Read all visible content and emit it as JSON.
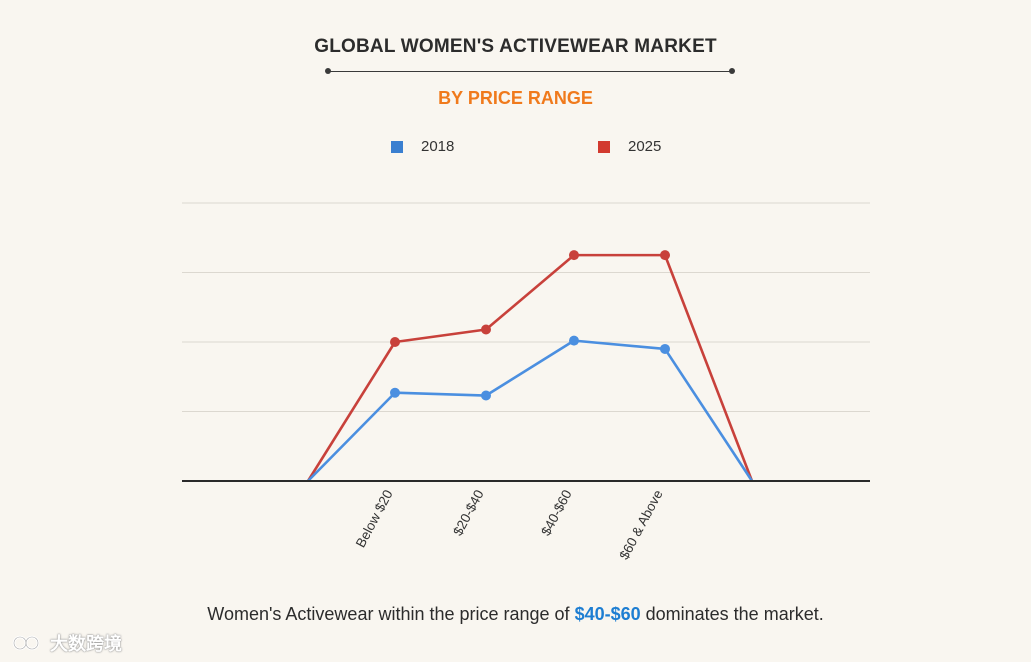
{
  "header": {
    "title": "GLOBAL WOMEN'S ACTIVEWEAR MARKET",
    "subtitle": "BY PRICE RANGE"
  },
  "legend": [
    {
      "label": "2018",
      "color": "#3a7fd0"
    },
    {
      "label": "2025",
      "color": "#d23a2f"
    }
  ],
  "caption": {
    "prefix": "Women's Activewear within the price range of ",
    "highlight": "$40-$60",
    "suffix": " dominates the market."
  },
  "watermark": {
    "text": "大数跨境"
  },
  "colors": {
    "series_2018": "#4b8fe0",
    "series_2025": "#c8413b",
    "accent": "#f07a1c",
    "highlight": "#1e7ed2"
  },
  "chart_data": {
    "type": "line",
    "title": "GLOBAL WOMEN'S ACTIVEWEAR MARKET",
    "subtitle": "BY PRICE RANGE",
    "categories": [
      "",
      "Below $20",
      "$20-$40",
      "$40-$60",
      "$60 & Above",
      ""
    ],
    "series": [
      {
        "name": "2018",
        "values": [
          0,
          1.27,
          1.23,
          2.02,
          1.9,
          0
        ]
      },
      {
        "name": "2025",
        "values": [
          0,
          2.0,
          2.18,
          3.25,
          3.25,
          0
        ]
      }
    ],
    "ylim": [
      0,
      4
    ],
    "grid": true,
    "legend_position": "top",
    "xlabel": "",
    "ylabel": ""
  }
}
